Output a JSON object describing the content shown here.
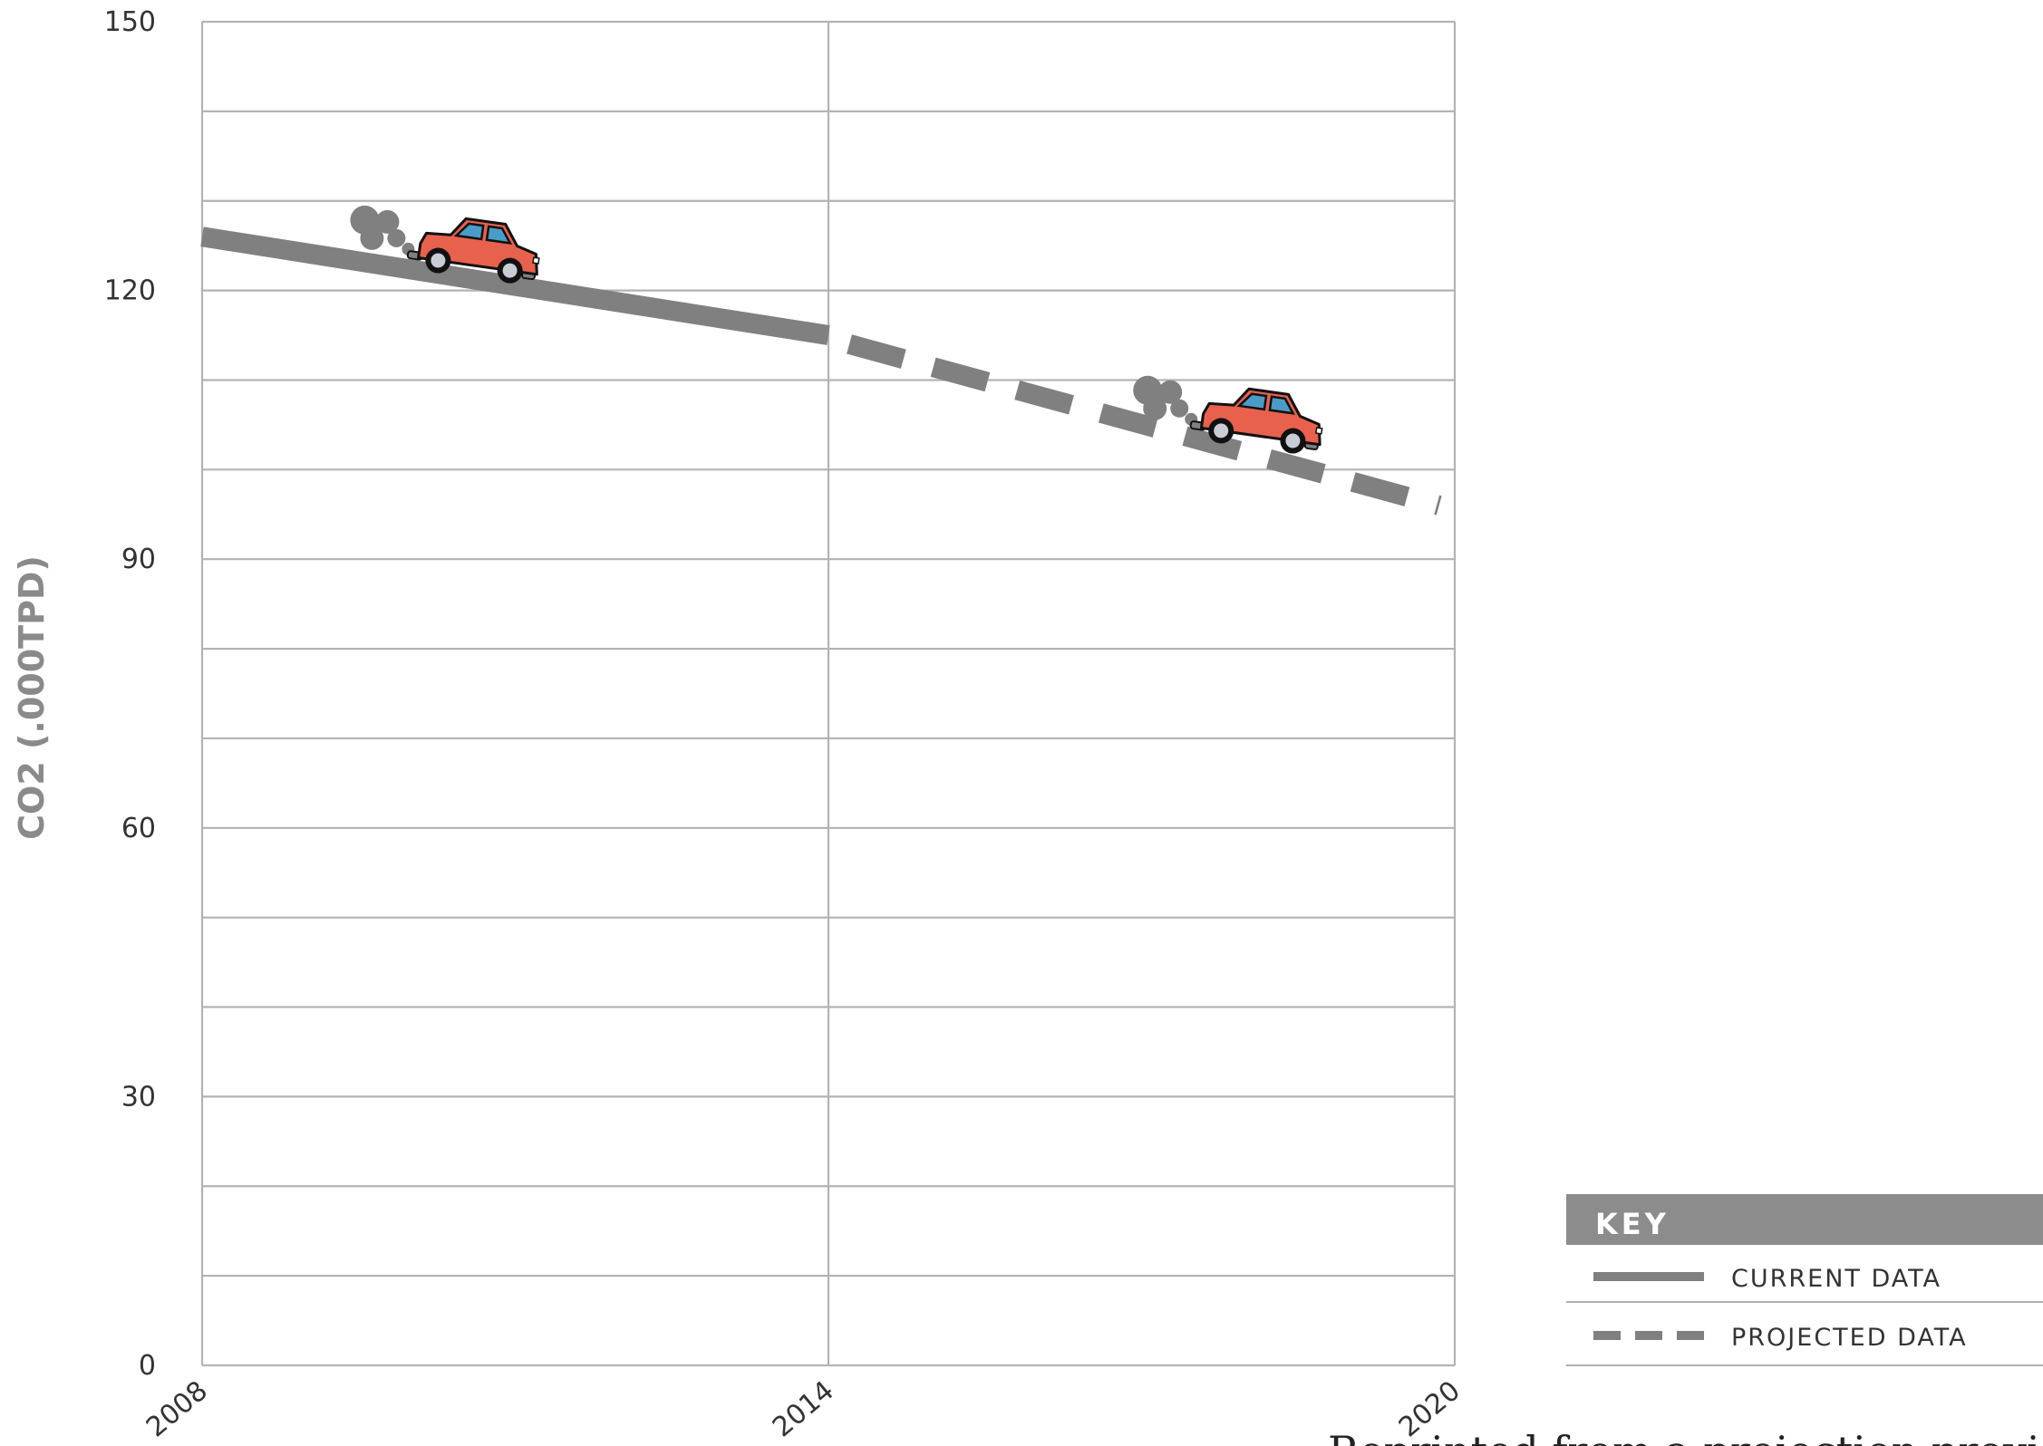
{
  "chart_data": {
    "type": "line",
    "ylabel": "CO2 (.000TPD)",
    "xlabel": "",
    "x_ticks": [
      "2008",
      "2014",
      "2020"
    ],
    "y_ticks": [
      "0",
      "30",
      "60",
      "90",
      "120",
      "150"
    ],
    "xlim": [
      2008,
      2020
    ],
    "ylim": [
      0,
      150
    ],
    "y_grid_step": 10,
    "grid": true,
    "series": [
      {
        "name": "CURRENT DATA",
        "style": "solid",
        "color": "#808080",
        "points": [
          {
            "x": 2008,
            "y": 126
          },
          {
            "x": 2014,
            "y": 115
          }
        ]
      },
      {
        "name": "PROJECTED DATA",
        "style": "dashed",
        "color": "#808080",
        "points": [
          {
            "x": 2014.2,
            "y": 114
          },
          {
            "x": 2019.85,
            "y": 96
          }
        ]
      }
    ],
    "decorations": {
      "car_icons": [
        {
          "x": 2010.6,
          "y": 123
        },
        {
          "x": 2018.1,
          "y": 104
        }
      ]
    },
    "legend": {
      "title": "KEY",
      "placement": "bottom-right",
      "entries": [
        {
          "label": "CURRENT DATA",
          "style": "solid"
        },
        {
          "label": "PROJECTED DATA",
          "style": "dashed"
        }
      ]
    }
  },
  "footnote": "Reprinted from a projection provided by"
}
